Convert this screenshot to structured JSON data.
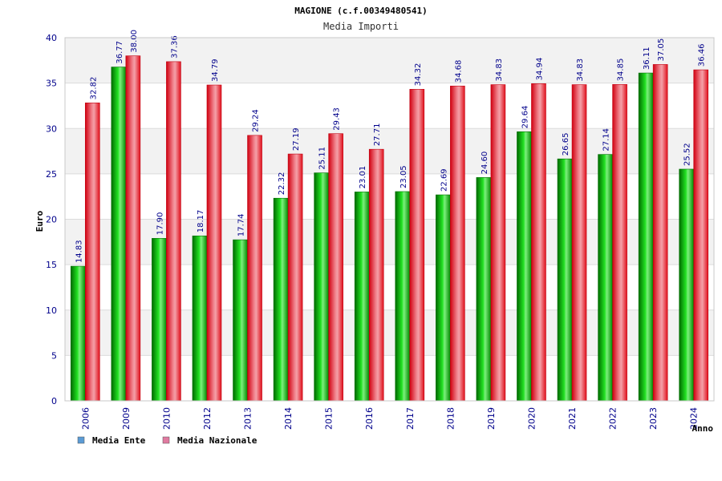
{
  "chart_data": {
    "type": "bar",
    "title": "MAGIONE (c.f.00349480541)",
    "subtitle": "Media Importi",
    "ylabel": "Euro",
    "xlabel": "Anno",
    "ylim": [
      0,
      40
    ],
    "yticks": [
      0,
      5,
      10,
      15,
      20,
      25,
      30,
      35,
      40
    ],
    "grid": true,
    "legend_position": "bottom-left",
    "categories": [
      "2006",
      "2009",
      "2010",
      "2012",
      "2013",
      "2014",
      "2015",
      "2016",
      "2017",
      "2018",
      "2019",
      "2020",
      "2021",
      "2022",
      "2023",
      "2024"
    ],
    "series": [
      {
        "name": "Media Ente",
        "color": "#00b000",
        "values": [
          14.83,
          36.77,
          17.9,
          18.17,
          17.74,
          22.32,
          25.11,
          23.01,
          23.05,
          22.69,
          24.6,
          29.64,
          26.65,
          27.14,
          36.11,
          25.52
        ],
        "labels": [
          "14.83",
          "36.77",
          "17.90",
          "18.17",
          "17.74",
          "22.32",
          "25.11",
          "23.01",
          "23.05",
          "22.69",
          "24.60",
          "29.64",
          "26.65",
          "27.14",
          "36.11",
          "25.52"
        ]
      },
      {
        "name": "Media Nazionale",
        "color": "#e8101a",
        "values": [
          32.82,
          38.0,
          37.36,
          34.79,
          29.24,
          27.19,
          29.43,
          27.71,
          34.32,
          34.68,
          34.83,
          34.94,
          34.83,
          34.85,
          37.05,
          36.46
        ],
        "labels": [
          "32.82",
          "38.00",
          "37.36",
          "34.79",
          "29.24",
          "27.19",
          "29.43",
          "27.71",
          "34.32",
          "34.68",
          "34.83",
          "34.94",
          "34.83",
          "34.85",
          "37.05",
          "36.46"
        ]
      }
    ],
    "legend": [
      {
        "label": "Media Ente",
        "color": "#5b9bd5"
      },
      {
        "label": "Media Nazionale",
        "color": "#e07aa0"
      }
    ]
  }
}
